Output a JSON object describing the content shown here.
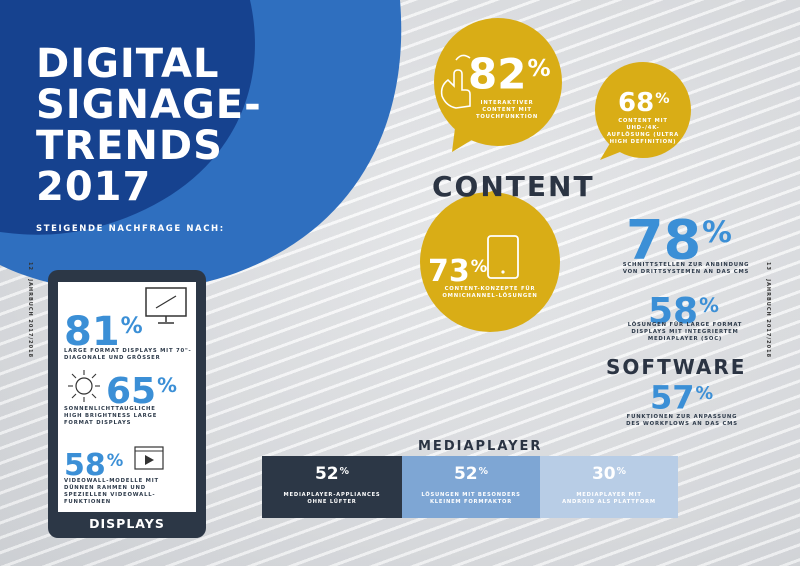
{
  "title": {
    "line1": "DIGITAL",
    "line2": "SIGNAGE-",
    "line3": "TRENDS",
    "line4": "2017"
  },
  "subtitle": "STEIGENDE NACHFRAGE NACH:",
  "side_left": {
    "page": "12",
    "label": "JAHRBUCH 2017/2018"
  },
  "side_right": {
    "page": "13",
    "label": "JAHRBUCH 2017/2018"
  },
  "displays": {
    "label": "DISPLAYS",
    "items": [
      {
        "value": "81",
        "unit": "%",
        "text": "LARGE FORMAT DISPLAYS MIT 70\"-DIAGONALE UND GRÖSSER",
        "icon": "monitor-icon"
      },
      {
        "value": "65",
        "unit": "%",
        "text": "SONNENLICHTTAUGLICHE HIGH BRIGHTNESS LARGE FORMAT DISPLAYS",
        "icon": "sun-icon"
      },
      {
        "value": "58",
        "unit": "%",
        "text": "VIDEOWALL-MODELLE MIT DÜNNEN RAHMEN UND SPEZIELLEN VIDEOWALL-FUNKTIONEN",
        "icon": "video-player-icon"
      }
    ]
  },
  "content": {
    "heading": "CONTENT",
    "bubbles": [
      {
        "value": "82",
        "unit": "%",
        "text": "INTERAKTIVER CONTENT MIT TOUCHFUNKTION",
        "icon": "touch-hand-icon"
      },
      {
        "value": "68",
        "unit": "%",
        "text": "CONTENT MIT UHD-/4K-AUFLÖSUNG (ULTRA HIGH DEFINITION)"
      },
      {
        "value": "73",
        "unit": "%",
        "text": "CONTENT-KONZEPTE FÜR OMNICHANNEL-LÖSUNGEN",
        "icon": "tablet-icon"
      }
    ]
  },
  "software": {
    "heading": "SOFTWARE",
    "items": [
      {
        "value": "78",
        "unit": "%",
        "text": "SCHNITTSTELLEN ZUR ANBINDUNG VON DRITTSYSTEMEN AN DAS CMS"
      },
      {
        "value": "58",
        "unit": "%",
        "text": "LÖSUNGEN FÜR LARGE FORMAT DISPLAYS MIT INTEGRIERTEM MEDIAPLAYER (SOC)"
      },
      {
        "value": "57",
        "unit": "%",
        "text": "FUNKTIONEN ZUR ANPASSUNG DES WORKFLOWS AN DAS CMS"
      }
    ]
  },
  "mediaplayer": {
    "heading": "MEDIAPLAYER",
    "items": [
      {
        "value": "52",
        "unit": "%",
        "text": "MEDIAPLAYER-APPLIANCES OHNE LÜFTER"
      },
      {
        "value": "52",
        "unit": "%",
        "text": "LÖSUNGEN MIT BESONDERS KLEINEM FORMFAKTOR"
      },
      {
        "value": "30",
        "unit": "%",
        "text": "MEDIAPLAYER MIT ANDROID ALS PLATTFORM"
      }
    ]
  },
  "colors": {
    "navy": "#16428f",
    "blue": "#2f6fbf",
    "accent_blue": "#3b8fd6",
    "gold": "#d9ad16",
    "dark": "#2b3443"
  }
}
